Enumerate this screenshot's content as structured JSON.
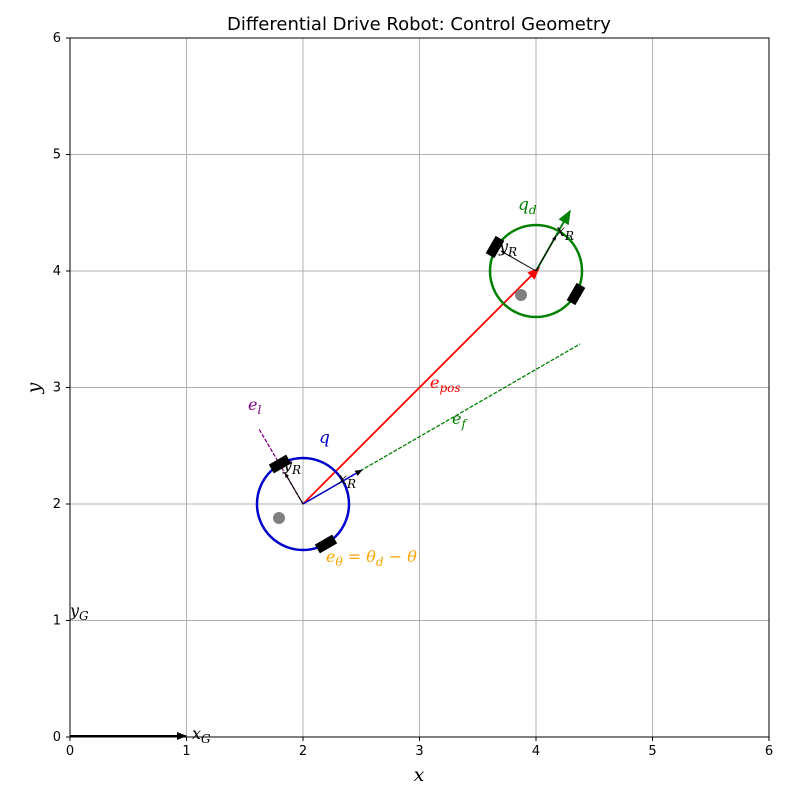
{
  "title": "Differential Drive Robot: Control Geometry",
  "xlabel": "x",
  "ylabel": "y",
  "xlim": [
    0,
    6
  ],
  "ylim": [
    0,
    6
  ],
  "xticks": [
    "0",
    "1",
    "2",
    "3",
    "4",
    "5",
    "6"
  ],
  "yticks": [
    "0",
    "1",
    "2",
    "3",
    "4",
    "5",
    "6"
  ],
  "grid": true,
  "global_frame": {
    "origin": [
      0,
      0
    ],
    "x_label": "x",
    "x_sub": "G",
    "y_label": "y",
    "y_sub": "G"
  },
  "robot_current": {
    "label": "q",
    "color": "#0000cc",
    "center": [
      2.0,
      2.0
    ],
    "radius": 0.4,
    "heading_deg": 30,
    "x_label": "x",
    "x_sub": "R",
    "y_label": "y",
    "y_sub": "R"
  },
  "robot_desired": {
    "label": "q",
    "label_sub": "d",
    "color": "#008000",
    "center": [
      4.0,
      4.0
    ],
    "radius": 0.4,
    "heading_deg": 60,
    "x_label": "x",
    "x_sub": "R",
    "y_label": "y",
    "y_sub": "R"
  },
  "errors": {
    "e_pos": {
      "label": "e",
      "sub": "pos",
      "color": "#ff0000",
      "from": [
        2.0,
        2.0
      ],
      "to": [
        4.0,
        4.0
      ]
    },
    "e_f": {
      "label": "e",
      "sub": "f",
      "color": "#008000",
      "from": [
        2.0,
        2.0
      ],
      "to": [
        4.37,
        3.37
      ]
    },
    "e_l": {
      "label": "e",
      "sub": "l",
      "color": "#800080",
      "from": [
        2.0,
        2.0
      ],
      "to": [
        1.63,
        2.64
      ]
    },
    "e_theta": {
      "label": "e",
      "label_sub": "θ",
      "equals": " = ",
      "theta": "θ",
      "theta_sub": "d",
      "minus": " − ",
      "theta2": "θ",
      "color": "#ffa500"
    }
  },
  "colors": {
    "grid": "#b0b0b0",
    "caster": "#808080",
    "wheel": "#000000",
    "frame_arrow": "#000000"
  }
}
